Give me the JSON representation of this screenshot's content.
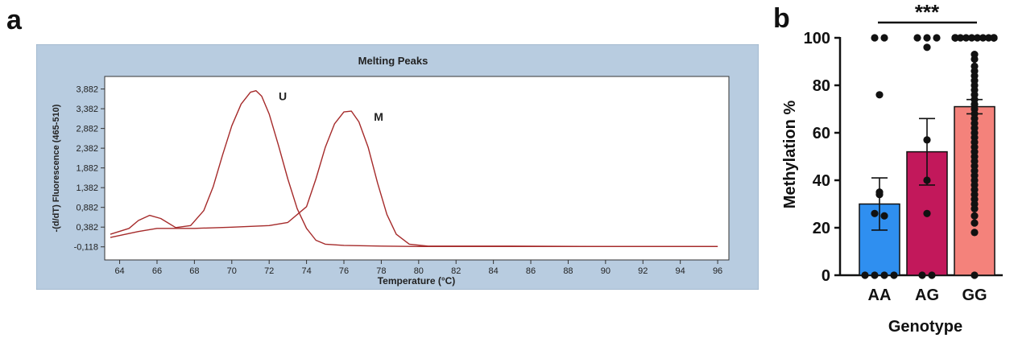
{
  "figure": {
    "panel_a_letter": "a",
    "panel_b_letter": "b"
  },
  "colors": {
    "frame_bg": "#b8cce0",
    "curve": "#a52a2a",
    "bar_AA": "#2f8ff0",
    "bar_AG": "#c2185b",
    "bar_GG": "#f4827b",
    "dots": "#111111"
  },
  "chart_data": [
    {
      "type": "line",
      "title": "Melting Peaks",
      "xlabel": "Temperature (°C)",
      "ylabel": "-(d/dT) Fluorescence (465-510)",
      "xlim": [
        63.2,
        96.6
      ],
      "ylim": [
        -0.45,
        4.2
      ],
      "xticks": [
        64,
        66,
        68,
        70,
        72,
        74,
        76,
        78,
        80,
        82,
        84,
        86,
        88,
        90,
        92,
        94,
        96
      ],
      "yticks": [
        -0.118,
        0.382,
        0.882,
        1.382,
        1.882,
        2.382,
        2.882,
        3.382,
        3.882
      ],
      "ytick_labels": [
        "-0,118",
        "0,382",
        "0,882",
        "1,382",
        "1,882",
        "2,382",
        "2,882",
        "3,382",
        "3,882"
      ],
      "grid": false,
      "series": [
        {
          "name": "U",
          "x": [
            63.5,
            64.5,
            65.0,
            65.6,
            66.2,
            67.0,
            67.8,
            68.5,
            69.0,
            69.5,
            70.0,
            70.5,
            71.0,
            71.3,
            71.6,
            72.0,
            72.5,
            73.0,
            73.5,
            74.0,
            74.5,
            75.0,
            76.0,
            78.0,
            80.0,
            84.0,
            90.0,
            96.0
          ],
          "y": [
            0.2,
            0.35,
            0.55,
            0.68,
            0.6,
            0.37,
            0.42,
            0.8,
            1.4,
            2.2,
            2.95,
            3.5,
            3.8,
            3.84,
            3.7,
            3.25,
            2.45,
            1.6,
            0.85,
            0.35,
            0.05,
            -0.05,
            -0.08,
            -0.1,
            -0.11,
            -0.11,
            -0.11,
            -0.11
          ]
        },
        {
          "name": "M",
          "x": [
            63.5,
            65.0,
            66.0,
            68.0,
            70.0,
            72.0,
            73.0,
            74.0,
            74.5,
            75.0,
            75.5,
            76.0,
            76.4,
            76.8,
            77.3,
            77.8,
            78.3,
            78.8,
            79.5,
            80.5,
            84.0,
            90.0,
            96.0
          ],
          "y": [
            0.12,
            0.27,
            0.35,
            0.35,
            0.38,
            0.42,
            0.5,
            0.9,
            1.6,
            2.4,
            3.0,
            3.3,
            3.32,
            3.05,
            2.4,
            1.5,
            0.7,
            0.2,
            -0.05,
            -0.1,
            -0.1,
            -0.11,
            -0.11
          ]
        }
      ]
    },
    {
      "type": "bar",
      "xlabel": "Genotype",
      "ylabel": "Methylation %",
      "categories": [
        "AA",
        "AG",
        "GG"
      ],
      "values": [
        30,
        52,
        71
      ],
      "sem": [
        11,
        14,
        3
      ],
      "ylim": [
        0,
        100
      ],
      "yticks": [
        0,
        20,
        40,
        60,
        80,
        100
      ],
      "significance": "***",
      "points": [
        [
          100,
          100,
          76,
          35,
          34,
          26,
          25,
          0,
          0,
          0,
          0
        ],
        [
          100,
          100,
          100,
          96,
          57,
          40,
          26,
          0,
          0
        ],
        [
          100,
          100,
          100,
          100,
          100,
          100,
          100,
          100,
          100,
          100,
          100,
          100,
          100,
          100,
          100,
          100,
          93,
          91,
          88,
          86,
          84,
          82,
          80,
          78,
          76,
          74,
          72,
          70,
          68,
          66,
          64,
          62,
          60,
          58,
          56,
          54,
          52,
          50,
          48,
          46,
          44,
          42,
          40,
          38,
          36,
          34,
          32,
          30,
          28,
          25,
          22,
          18,
          0
        ]
      ]
    }
  ]
}
